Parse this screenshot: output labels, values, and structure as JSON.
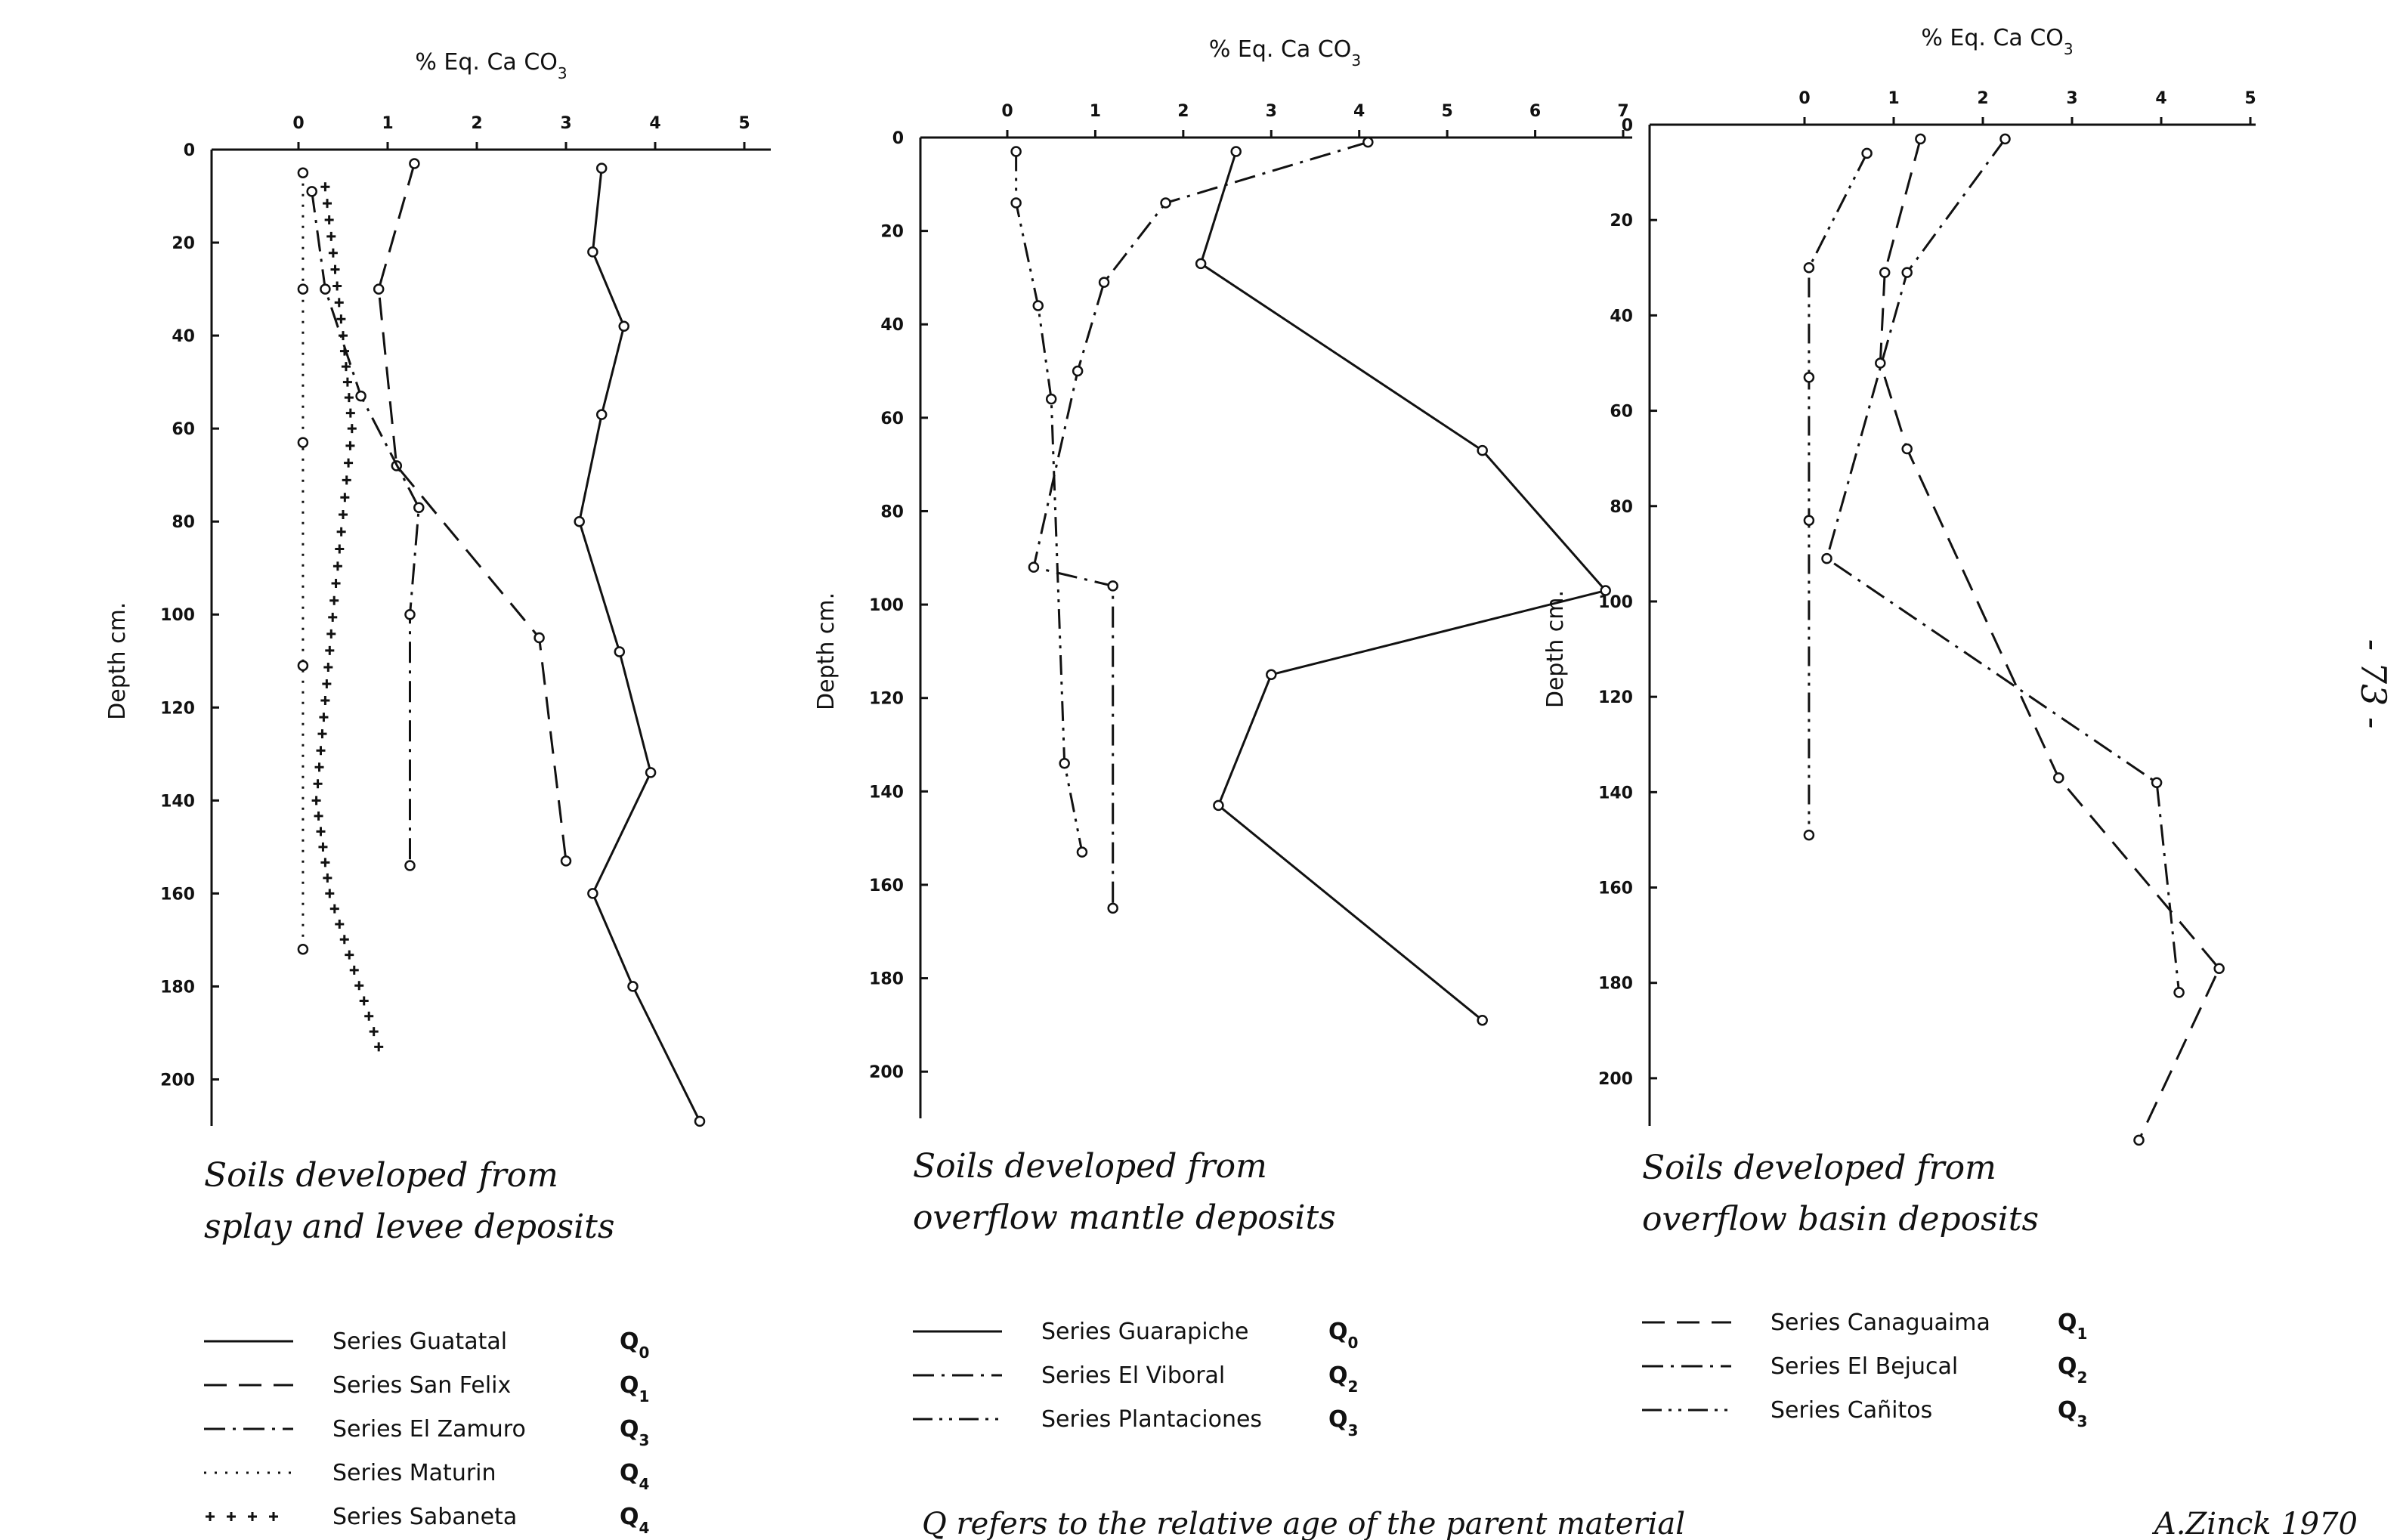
{
  "page_number": "- 73 -",
  "footer": {
    "note": "Q refers to the relative age of the parent material",
    "signature": "A.Zinck 1970"
  },
  "chart_data": [
    {
      "type": "line",
      "xlabel": "% Eq. Ca CO3",
      "ylabel": "Depth cm.",
      "xlim": [
        0,
        5
      ],
      "ylim": [
        0,
        210
      ],
      "xticks": [
        0,
        1,
        2,
        3,
        4,
        5
      ],
      "yticks": [
        0,
        20,
        40,
        60,
        80,
        100,
        120,
        140,
        160,
        180,
        200
      ],
      "caption": [
        "Soils developed from",
        "splay and levee deposits"
      ],
      "series": [
        {
          "name": "Series Guatatal",
          "age": "Q0",
          "style": "solid",
          "x": [
            3.4,
            3.3,
            3.65,
            3.4,
            3.15,
            3.6,
            3.95,
            3.3,
            3.75,
            4.5
          ],
          "y": [
            4,
            22,
            38,
            57,
            80,
            108,
            134,
            160,
            180,
            209
          ]
        },
        {
          "name": "Series San Felix",
          "age": "Q1",
          "style": "dashed",
          "x": [
            1.3,
            0.9,
            1.1,
            2.7,
            3.0
          ],
          "y": [
            3,
            30,
            68,
            105,
            153
          ]
        },
        {
          "name": "Series El Zamuro",
          "age": "Q3",
          "style": "dashdot",
          "x": [
            0.15,
            0.3,
            0.7,
            1.35,
            1.25,
            1.25
          ],
          "y": [
            9,
            30,
            53,
            77,
            100,
            154
          ]
        },
        {
          "name": "Series Maturin",
          "age": "Q4",
          "style": "dotted",
          "x": [
            0.05,
            0.05,
            0.05,
            0.05,
            0.05
          ],
          "y": [
            5,
            30,
            63,
            111,
            172
          ]
        },
        {
          "name": "Series Sabaneta",
          "age": "Q4",
          "style": "plus",
          "x": [
            0.3,
            0.5,
            0.6,
            0.4,
            0.2,
            0.35,
            0.9
          ],
          "y": [
            8,
            40,
            60,
            97,
            140,
            160,
            193
          ]
        }
      ]
    },
    {
      "type": "line",
      "xlabel": "% Eq. Ca CO3",
      "ylabel": "Depth cm.",
      "xlim": [
        0,
        7
      ],
      "ylim": [
        0,
        210
      ],
      "xticks": [
        0,
        1,
        2,
        3,
        4,
        5,
        6,
        7
      ],
      "yticks": [
        0,
        20,
        40,
        60,
        80,
        100,
        120,
        140,
        160,
        180,
        200
      ],
      "caption": [
        "Soils developed from",
        "overflow mantle deposits"
      ],
      "series": [
        {
          "name": "Series Guarapiche",
          "age": "Q0",
          "style": "solid",
          "x": [
            2.6,
            2.2,
            5.4,
            6.8,
            3.0,
            2.4,
            5.4
          ],
          "y": [
            3,
            27,
            67,
            97,
            115,
            143,
            189
          ]
        },
        {
          "name": "Series El Viboral",
          "age": "Q2",
          "style": "dashdot",
          "x": [
            4.1,
            1.8,
            1.1,
            0.8,
            0.3,
            1.2,
            1.2
          ],
          "y": [
            1,
            14,
            31,
            50,
            92,
            96,
            165
          ]
        },
        {
          "name": "Series Plantaciones",
          "age": "Q3",
          "style": "dashdotdot",
          "x": [
            0.1,
            0.1,
            0.35,
            0.5,
            0.65,
            0.85
          ],
          "y": [
            3,
            14,
            36,
            56,
            134,
            153
          ]
        }
      ]
    },
    {
      "type": "line",
      "xlabel": "% Eq. Ca CO3",
      "ylabel": "Depth cm.",
      "xlim": [
        0,
        5
      ],
      "ylim": [
        0,
        210
      ],
      "xticks": [
        0,
        1,
        2,
        3,
        4,
        5
      ],
      "yticks": [
        0,
        20,
        40,
        60,
        80,
        100,
        120,
        140,
        160,
        180,
        200
      ],
      "caption": [
        "Soils developed from",
        "overflow basin deposits"
      ],
      "series": [
        {
          "name": "Series Canaguaima",
          "age": "Q1",
          "style": "dashed",
          "x": [
            1.3,
            0.9,
            0.85,
            1.15,
            2.85,
            4.65,
            3.75
          ],
          "y": [
            3,
            31,
            50,
            68,
            137,
            177,
            213
          ]
        },
        {
          "name": "Series El Bejucal",
          "age": "Q2",
          "style": "dashdot",
          "x": [
            2.25,
            1.15,
            0.25,
            3.95,
            4.2
          ],
          "y": [
            3,
            31,
            91,
            138,
            182
          ]
        },
        {
          "name": "Series Cañitos",
          "age": "Q3",
          "style": "dashdotdot",
          "x": [
            0.7,
            0.05,
            0.05,
            0.05,
            0.05
          ],
          "y": [
            6,
            30,
            53,
            83,
            149
          ]
        }
      ]
    }
  ]
}
